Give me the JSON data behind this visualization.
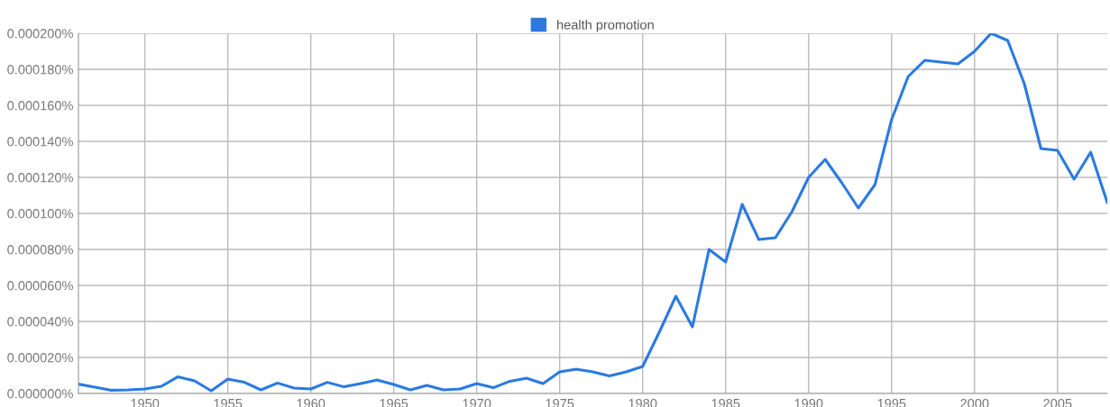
{
  "chart_data": {
    "type": "line",
    "legend": "top",
    "grid": true,
    "marker": "none",
    "line_style": "solid",
    "x": [
      1946,
      1947,
      1948,
      1949,
      1950,
      1951,
      1952,
      1953,
      1954,
      1955,
      1956,
      1957,
      1958,
      1959,
      1960,
      1961,
      1962,
      1963,
      1964,
      1965,
      1966,
      1967,
      1968,
      1969,
      1970,
      1971,
      1972,
      1973,
      1974,
      1975,
      1976,
      1977,
      1978,
      1979,
      1980,
      1981,
      1982,
      1983,
      1984,
      1985,
      1986,
      1987,
      1988,
      1989,
      1990,
      1991,
      1992,
      1993,
      1994,
      1995,
      1996,
      1997,
      1998,
      1999,
      2000,
      2001,
      2002,
      2003,
      2004,
      2005,
      2006,
      2007,
      2008
    ],
    "series": [
      {
        "name": "health promotion",
        "color": "#2a7ae2",
        "values": [
          5.2e-06,
          3.5e-06,
          1.8e-06,
          2e-06,
          2.5e-06,
          4e-06,
          9.3e-06,
          7e-06,
          1.5e-06,
          8e-06,
          6.2e-06,
          2e-06,
          5.8e-06,
          3e-06,
          2.5e-06,
          6.2e-06,
          3.7e-06,
          5.5e-06,
          7.5e-06,
          5e-06,
          2e-06,
          4.5e-06,
          2e-06,
          2.5e-06,
          5.5e-06,
          3.2e-06,
          6.8e-06,
          8.5e-06,
          5.5e-06,
          1.2e-05,
          1.35e-05,
          1.2e-05,
          9.8e-06,
          1.2e-05,
          1.5e-05,
          3.4e-05,
          5.4e-05,
          3.7e-05,
          8e-05,
          7.3e-05,
          0.000105,
          8.55e-05,
          8.65e-05,
          0.000101,
          0.00012,
          0.00013,
          0.000117,
          0.000103,
          0.000116,
          0.000152,
          0.000176,
          0.000185,
          0.000184,
          0.000183,
          0.00019,
          0.0002,
          0.000196,
          0.000172,
          0.000136,
          0.000135,
          0.000119,
          0.000134,
          0.000106
        ]
      }
    ],
    "xlim": [
      1946,
      2008
    ],
    "xticks": [
      1950,
      1955,
      1960,
      1965,
      1970,
      1975,
      1980,
      1985,
      1990,
      1995,
      2000,
      2005
    ],
    "ylim": [
      0,
      0.0002
    ],
    "yticks": [
      {
        "value": 0,
        "label": "0.000000%"
      },
      {
        "value": 2e-05,
        "label": "0.000020%"
      },
      {
        "value": 4e-05,
        "label": "0.000040%"
      },
      {
        "value": 6e-05,
        "label": "0.000060%"
      },
      {
        "value": 8e-05,
        "label": "0.000080%"
      },
      {
        "value": 0.0001,
        "label": "0.000100%"
      },
      {
        "value": 0.00012,
        "label": "0.000120%"
      },
      {
        "value": 0.00014,
        "label": "0.000140%"
      },
      {
        "value": 0.00016,
        "label": "0.000160%"
      },
      {
        "value": 0.00018,
        "label": "0.000180%"
      },
      {
        "value": 0.0002,
        "label": "0.000200%"
      }
    ]
  }
}
